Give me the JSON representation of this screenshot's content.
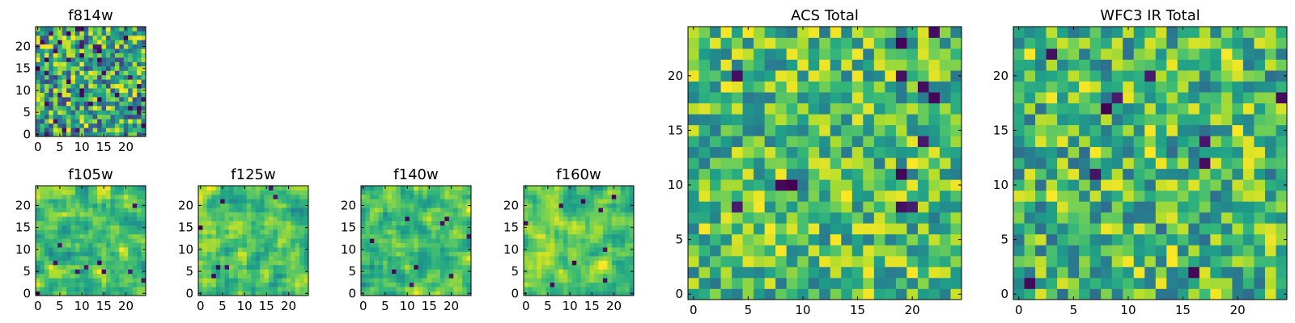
{
  "figure": {
    "colormap": "viridis"
  },
  "colors": {
    "viridis": [
      "#440154",
      "#482878",
      "#3e4989",
      "#31688e",
      "#26828e",
      "#1f9e89",
      "#35b779",
      "#6ece58",
      "#b5de2b",
      "#fde725"
    ]
  },
  "chart_data": [
    {
      "id": "f814w",
      "type": "heatmap",
      "title": "f814w",
      "grid": [
        25,
        25
      ],
      "xlim": [
        -0.5,
        24.5
      ],
      "ylim": [
        -0.5,
        24.5
      ],
      "xticks": [
        0,
        5,
        10,
        15,
        20
      ],
      "yticks": [
        0,
        5,
        10,
        15,
        20
      ],
      "vrange": [
        0.2,
        1.0
      ],
      "seed": 11,
      "smooth": 0,
      "dark_frac": 0.07
    },
    {
      "id": "f105w",
      "type": "heatmap",
      "title": "f105w",
      "grid": [
        25,
        25
      ],
      "xlim": [
        -0.5,
        24.5
      ],
      "ylim": [
        -0.5,
        24.5
      ],
      "xticks": [
        0,
        5,
        10,
        15,
        20
      ],
      "yticks": [
        0,
        5,
        10,
        15,
        20
      ],
      "vrange": [
        0.45,
        1.0
      ],
      "seed": 23,
      "smooth": 1,
      "dark_frac": 0.012
    },
    {
      "id": "f125w",
      "type": "heatmap",
      "title": "f125w",
      "grid": [
        25,
        25
      ],
      "xlim": [
        -0.5,
        24.5
      ],
      "ylim": [
        -0.5,
        24.5
      ],
      "xticks": [
        0,
        5,
        10,
        15,
        20
      ],
      "yticks": [
        0,
        5,
        10,
        15,
        20
      ],
      "vrange": [
        0.45,
        1.0
      ],
      "seed": 37,
      "smooth": 1,
      "dark_frac": 0.01
    },
    {
      "id": "f140w",
      "type": "heatmap",
      "title": "f140w",
      "grid": [
        25,
        25
      ],
      "xlim": [
        -0.5,
        24.5
      ],
      "ylim": [
        -0.5,
        24.5
      ],
      "xticks": [
        0,
        5,
        10,
        15,
        20
      ],
      "yticks": [
        0,
        5,
        10,
        15,
        20
      ],
      "vrange": [
        0.45,
        1.0
      ],
      "seed": 41,
      "smooth": 1,
      "dark_frac": 0.01
    },
    {
      "id": "f160w",
      "type": "heatmap",
      "title": "f160w",
      "grid": [
        25,
        25
      ],
      "xlim": [
        -0.5,
        24.5
      ],
      "ylim": [
        -0.5,
        24.5
      ],
      "xticks": [
        0,
        5,
        10,
        15,
        20
      ],
      "yticks": [
        0,
        5,
        10,
        15,
        20
      ],
      "vrange": [
        0.45,
        1.0
      ],
      "seed": 53,
      "smooth": 1,
      "dark_frac": 0.015
    },
    {
      "id": "acs-total",
      "type": "heatmap",
      "title": "ACS Total",
      "grid": [
        25,
        25
      ],
      "xlim": [
        -0.5,
        24.5
      ],
      "ylim": [
        -0.5,
        24.5
      ],
      "xticks": [
        0,
        5,
        10,
        15,
        20
      ],
      "yticks": [
        0,
        5,
        10,
        15,
        20
      ],
      "vrange": [
        0.4,
        1.0
      ],
      "seed": 67,
      "smooth": 0,
      "dark_frac": 0.02
    },
    {
      "id": "wfc3-ir-total",
      "type": "heatmap",
      "title": "WFC3 IR Total",
      "grid": [
        25,
        25
      ],
      "xlim": [
        -0.5,
        24.5
      ],
      "ylim": [
        -0.5,
        24.5
      ],
      "xticks": [
        0,
        5,
        10,
        15,
        20
      ],
      "yticks": [
        0,
        5,
        10,
        15,
        20
      ],
      "vrange": [
        0.35,
        1.0
      ],
      "seed": 79,
      "smooth": 0,
      "dark_frac": 0.025
    }
  ]
}
